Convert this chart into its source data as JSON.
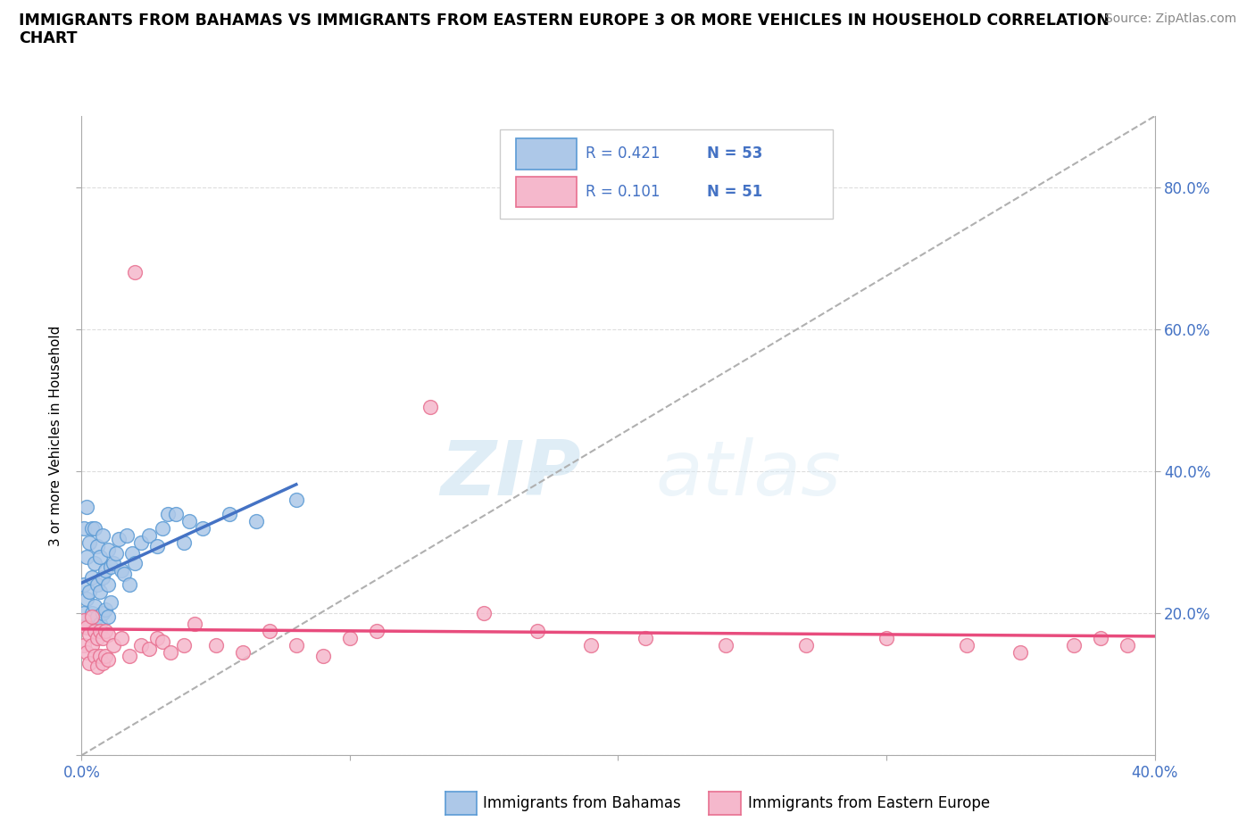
{
  "title_line1": "IMMIGRANTS FROM BAHAMAS VS IMMIGRANTS FROM EASTERN EUROPE 3 OR MORE VEHICLES IN HOUSEHOLD CORRELATION",
  "title_line2": "CHART",
  "source": "Source: ZipAtlas.com",
  "ylabel": "3 or more Vehicles in Household",
  "xlim": [
    0.0,
    0.4
  ],
  "ylim": [
    0.0,
    0.9
  ],
  "bahamas_color": "#adc8e8",
  "bahamas_edge_color": "#5b9bd5",
  "eastern_color": "#f5b8cc",
  "eastern_edge_color": "#e87090",
  "trendline_bahamas_color": "#4472c4",
  "trendline_eastern_color": "#e84c7d",
  "diag_color": "#b0b0b0",
  "watermark_zip": "ZIP",
  "watermark_atlas": "atlas",
  "R_bahamas": "0.421",
  "N_bahamas": "53",
  "R_eastern": "0.101",
  "N_eastern": "51",
  "label_bahamas": "Immigrants from Bahamas",
  "label_eastern": "Immigrants from Eastern Europe",
  "grid_color": "#dddddd",
  "right_ytick_labels": [
    "80.0%",
    "60.0%",
    "40.0%",
    "20.0%"
  ],
  "right_ytick_positions": [
    0.8,
    0.6,
    0.4,
    0.2
  ],
  "bahamas_x": [
    0.001,
    0.001,
    0.001,
    0.002,
    0.002,
    0.002,
    0.003,
    0.003,
    0.003,
    0.004,
    0.004,
    0.004,
    0.005,
    0.005,
    0.005,
    0.005,
    0.006,
    0.006,
    0.006,
    0.007,
    0.007,
    0.007,
    0.008,
    0.008,
    0.008,
    0.009,
    0.009,
    0.01,
    0.01,
    0.01,
    0.011,
    0.011,
    0.012,
    0.013,
    0.014,
    0.015,
    0.016,
    0.017,
    0.018,
    0.019,
    0.02,
    0.022,
    0.025,
    0.028,
    0.03,
    0.032,
    0.035,
    0.038,
    0.04,
    0.045,
    0.055,
    0.065,
    0.08
  ],
  "bahamas_y": [
    0.2,
    0.24,
    0.32,
    0.22,
    0.28,
    0.35,
    0.18,
    0.23,
    0.3,
    0.2,
    0.25,
    0.32,
    0.18,
    0.21,
    0.27,
    0.32,
    0.195,
    0.24,
    0.295,
    0.185,
    0.23,
    0.28,
    0.2,
    0.25,
    0.31,
    0.205,
    0.26,
    0.195,
    0.24,
    0.29,
    0.215,
    0.265,
    0.27,
    0.285,
    0.305,
    0.26,
    0.255,
    0.31,
    0.24,
    0.285,
    0.27,
    0.3,
    0.31,
    0.295,
    0.32,
    0.34,
    0.34,
    0.3,
    0.33,
    0.32,
    0.34,
    0.33,
    0.36
  ],
  "eastern_x": [
    0.001,
    0.001,
    0.002,
    0.002,
    0.003,
    0.003,
    0.004,
    0.004,
    0.005,
    0.005,
    0.006,
    0.006,
    0.007,
    0.007,
    0.008,
    0.008,
    0.009,
    0.009,
    0.01,
    0.01,
    0.012,
    0.015,
    0.018,
    0.02,
    0.022,
    0.025,
    0.028,
    0.03,
    0.033,
    0.038,
    0.042,
    0.05,
    0.06,
    0.07,
    0.08,
    0.09,
    0.1,
    0.11,
    0.13,
    0.15,
    0.17,
    0.19,
    0.21,
    0.24,
    0.27,
    0.3,
    0.33,
    0.35,
    0.37,
    0.38,
    0.39
  ],
  "eastern_y": [
    0.19,
    0.155,
    0.18,
    0.145,
    0.17,
    0.13,
    0.195,
    0.155,
    0.175,
    0.14,
    0.165,
    0.125,
    0.175,
    0.14,
    0.165,
    0.13,
    0.175,
    0.14,
    0.17,
    0.135,
    0.155,
    0.165,
    0.14,
    0.68,
    0.155,
    0.15,
    0.165,
    0.16,
    0.145,
    0.155,
    0.185,
    0.155,
    0.145,
    0.175,
    0.155,
    0.14,
    0.165,
    0.175,
    0.49,
    0.2,
    0.175,
    0.155,
    0.165,
    0.155,
    0.155,
    0.165,
    0.155,
    0.145,
    0.155,
    0.165,
    0.155
  ]
}
